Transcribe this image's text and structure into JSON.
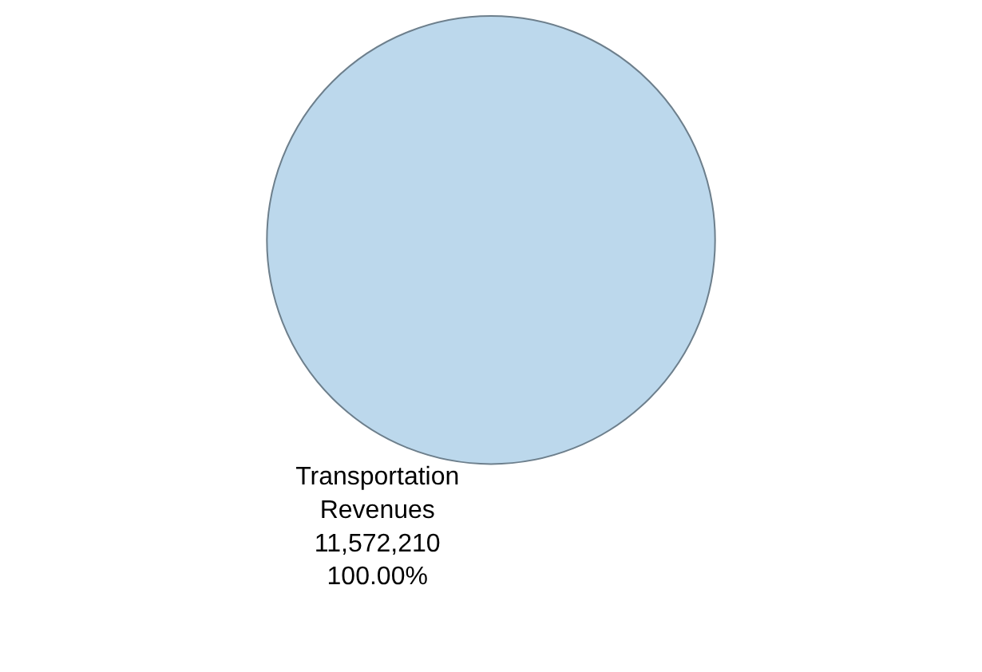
{
  "chart_data": {
    "type": "pie",
    "categories": [
      "Transportation Revenues"
    ],
    "values": [
      11572210
    ],
    "colors": [
      "#bcd8ec"
    ],
    "value_labels": [
      "11,572,210\n100.00%"
    ],
    "legend": false
  }
}
